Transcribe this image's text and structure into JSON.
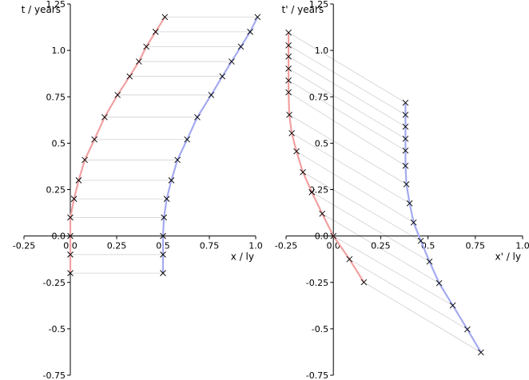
{
  "chart_data": [
    {
      "type": "line",
      "xlabel": "x / ly",
      "ylabel": "t / years",
      "xlim": [
        -0.25,
        1.0
      ],
      "ylim": [
        -0.75,
        1.25
      ],
      "xticks": [
        -0.25,
        {
          "value": 0,
          "label": "0.0"
        },
        0.25,
        0.5,
        0.75,
        {
          "value": 1,
          "label": "1.0"
        }
      ],
      "yticks": [
        -0.75,
        -0.5,
        -0.25,
        {
          "value": 0,
          "label": "0.0"
        },
        0.25,
        0.5,
        0.75,
        {
          "value": 1,
          "label": "1.0"
        },
        1.25
      ],
      "marker": "x",
      "connect_series": true,
      "series": [
        {
          "color": "#f2a0a0",
          "x": [
            0,
            0,
            0,
            0,
            0.02,
            0.045,
            0.078,
            0.13,
            0.185,
            0.255,
            0.32,
            0.37,
            0.41,
            0.46,
            0.51
          ],
          "values": [
            -0.2,
            -0.1,
            0,
            0.1,
            0.2,
            0.3,
            0.41,
            0.52,
            0.64,
            0.76,
            0.86,
            0.94,
            1.02,
            1.1,
            1.18
          ]
        },
        {
          "color": "#a4aaf0",
          "x": [
            0.5,
            0.5,
            0.5,
            0.505,
            0.52,
            0.545,
            0.578,
            0.63,
            0.685,
            0.76,
            0.82,
            0.87,
            0.92,
            0.97,
            1.01
          ],
          "values": [
            -0.2,
            -0.1,
            0,
            0.1,
            0.2,
            0.3,
            0.41,
            0.52,
            0.64,
            0.76,
            0.86,
            0.94,
            1.02,
            1.1,
            1.18
          ]
        }
      ]
    },
    {
      "type": "line",
      "xlabel": "x' / ly",
      "ylabel": "t' / years",
      "xlim": [
        -0.25,
        1.0
      ],
      "ylim": [
        -0.75,
        1.25
      ],
      "xticks": [
        -0.25,
        {
          "value": 0,
          "label": "0.0"
        },
        0.25,
        0.5,
        0.75,
        {
          "value": 1,
          "label": "1.0"
        }
      ],
      "yticks": [
        -0.75,
        -0.5,
        -0.25,
        {
          "value": 0,
          "label": "0.0"
        },
        0.25,
        0.5,
        0.75,
        {
          "value": 1,
          "label": "1.0"
        },
        1.25
      ],
      "marker": "x",
      "connect_series": true,
      "series": [
        {
          "color": "#f2a0a0",
          "x": [
            -0.237,
            -0.237,
            -0.237,
            -0.237,
            -0.237,
            -0.237,
            -0.233,
            -0.22,
            -0.195,
            -0.161,
            -0.114,
            -0.059,
            0,
            0.085,
            0.161
          ],
          "values": [
            1.096,
            1.027,
            0.967,
            0.902,
            0.838,
            0.774,
            0.653,
            0.554,
            0.456,
            0.344,
            0.236,
            0.12,
            0,
            -0.125,
            -0.249
          ]
        },
        {
          "color": "#a4aaf0",
          "x": [
            0.381,
            0.381,
            0.381,
            0.381,
            0.381,
            0.381,
            0.386,
            0.403,
            0.424,
            0.462,
            0.508,
            0.559,
            0.631,
            0.708,
            0.78
          ],
          "values": [
            0.718,
            0.653,
            0.589,
            0.524,
            0.46,
            0.378,
            0.279,
            0.176,
            0.073,
            -0.026,
            -0.138,
            -0.254,
            -0.374,
            -0.503,
            -0.627
          ]
        }
      ]
    }
  ]
}
